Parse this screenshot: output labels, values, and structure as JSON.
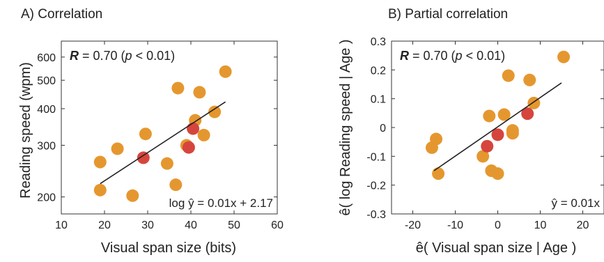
{
  "chart_data": [
    {
      "panel_title": "A) Correlation",
      "type": "scatter",
      "xlabel": "Visual span size (bits)",
      "ylabel": "Reading speed (wpm)",
      "x_scale": "linear",
      "y_scale": "log",
      "xlim": [
        10,
        60
      ],
      "ylim": [
        175,
        680
      ],
      "xticks": [
        10,
        20,
        30,
        40,
        50,
        60
      ],
      "yticks": [
        200,
        300,
        400,
        500,
        600
      ],
      "stat_prefix": "R",
      "stat_rest": " = 0.70 (",
      "stat_p": "p",
      "stat_end": " < 0.01)",
      "fit_label": "log ŷ = 0.01x + 2.17",
      "fit_line": {
        "x": [
          19,
          48
        ],
        "y": [
          222,
          422
        ]
      },
      "colors": {
        "orange": "#E5972F",
        "red": "#D6453D",
        "line": "#222222"
      },
      "points_orange": [
        {
          "x": 19,
          "y": 263
        },
        {
          "x": 19,
          "y": 211
        },
        {
          "x": 23,
          "y": 292
        },
        {
          "x": 26.5,
          "y": 202
        },
        {
          "x": 29.5,
          "y": 328
        },
        {
          "x": 34.5,
          "y": 260
        },
        {
          "x": 36.5,
          "y": 220
        },
        {
          "x": 37,
          "y": 470
        },
        {
          "x": 39,
          "y": 300
        },
        {
          "x": 41,
          "y": 365
        },
        {
          "x": 42,
          "y": 455
        },
        {
          "x": 43,
          "y": 325
        },
        {
          "x": 45.5,
          "y": 390
        },
        {
          "x": 48,
          "y": 535
        }
      ],
      "points_red": [
        {
          "x": 29,
          "y": 272
        },
        {
          "x": 39.5,
          "y": 295
        },
        {
          "x": 40.5,
          "y": 342
        }
      ]
    },
    {
      "panel_title": "B) Partial correlation",
      "type": "scatter",
      "xlabel": "ê( Visual span size | Age )",
      "ylabel": "ê( log Reading speed | Age )",
      "x_scale": "linear",
      "y_scale": "linear",
      "xlim": [
        -25,
        25
      ],
      "ylim": [
        -0.3,
        0.3
      ],
      "xticks": [
        -20,
        -10,
        0,
        10,
        20
      ],
      "yticks": [
        -0.3,
        -0.2,
        -0.1,
        0,
        0.1,
        0.2,
        0.3
      ],
      "xtick_labels": [
        "-20",
        "-10",
        "0",
        "10",
        "20"
      ],
      "ytick_labels": [
        "-0.3",
        "-0.2",
        "-0.1",
        "0",
        "0.1",
        "0.2",
        "0.3"
      ],
      "stat_prefix": "R",
      "stat_rest": " = 0.70 (",
      "stat_p": "p",
      "stat_end": " < 0.01)",
      "fit_label": "ŷ = 0.01x",
      "fit_line": {
        "x": [
          -15,
          15
        ],
        "y": [
          -0.15,
          0.155
        ]
      },
      "colors": {
        "orange": "#E5972F",
        "red": "#D6453D",
        "line": "#222222"
      },
      "points_orange": [
        {
          "x": -15.5,
          "y": -0.07
        },
        {
          "x": -14.5,
          "y": -0.04
        },
        {
          "x": -14,
          "y": -0.16
        },
        {
          "x": -3.5,
          "y": -0.1
        },
        {
          "x": -2,
          "y": 0.04
        },
        {
          "x": -1.5,
          "y": -0.15
        },
        {
          "x": 0,
          "y": -0.16
        },
        {
          "x": 1.5,
          "y": 0.045
        },
        {
          "x": 2.5,
          "y": 0.18
        },
        {
          "x": 3.5,
          "y": -0.01
        },
        {
          "x": 3.5,
          "y": -0.02
        },
        {
          "x": 7.5,
          "y": 0.165
        },
        {
          "x": 8.5,
          "y": 0.085
        },
        {
          "x": 15.5,
          "y": 0.245
        }
      ],
      "points_red": [
        {
          "x": -2.5,
          "y": -0.065
        },
        {
          "x": 0,
          "y": -0.025
        },
        {
          "x": 7,
          "y": 0.048
        }
      ]
    }
  ]
}
